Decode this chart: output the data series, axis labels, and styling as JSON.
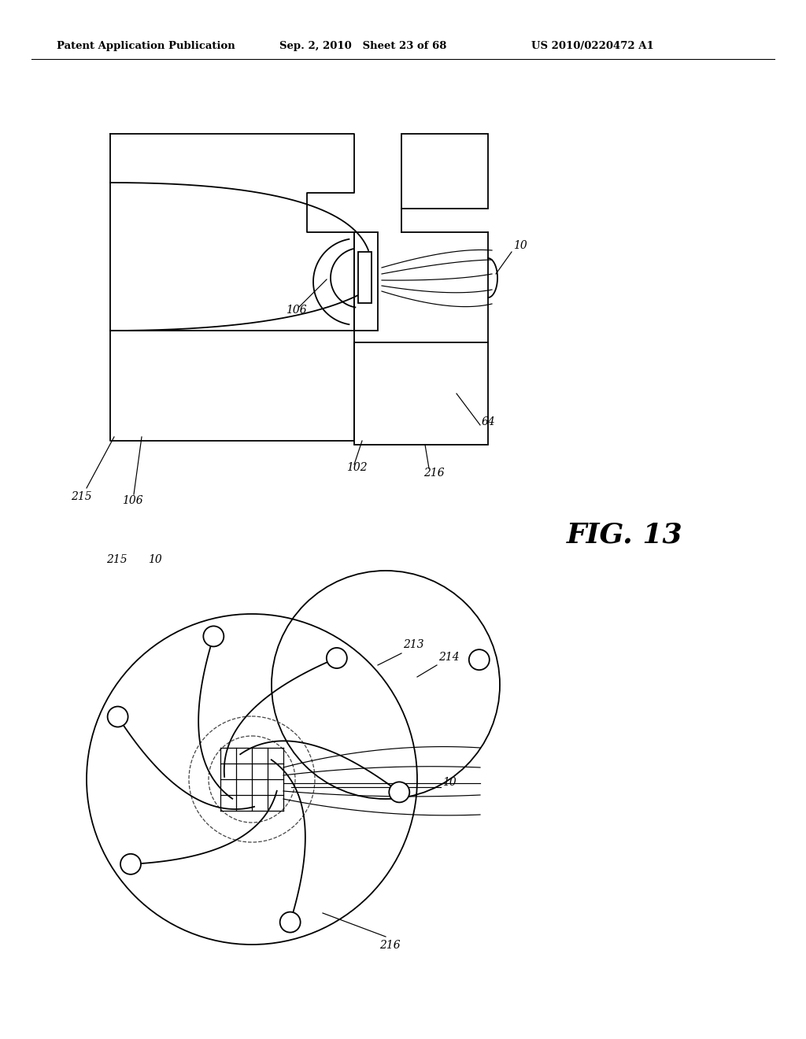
{
  "background_color": "#ffffff",
  "header_left": "Patent Application Publication",
  "header_mid": "Sep. 2, 2010   Sheet 23 of 68",
  "header_right": "US 2010/0220472 A1",
  "fig_label": "FIG. 13",
  "line_color": "#000000"
}
